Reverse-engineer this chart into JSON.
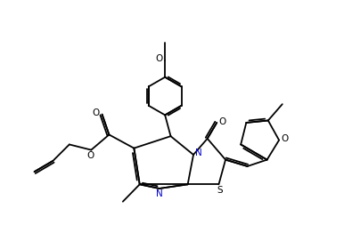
{
  "bg": "#ffffff",
  "bc": "#000000",
  "blue": "#0000cc",
  "lw": 1.3,
  "lw2": 1.3,
  "fs": 7.5,
  "xlim": [
    -1.5,
    12.5
  ],
  "ylim": [
    -0.5,
    10.5
  ]
}
